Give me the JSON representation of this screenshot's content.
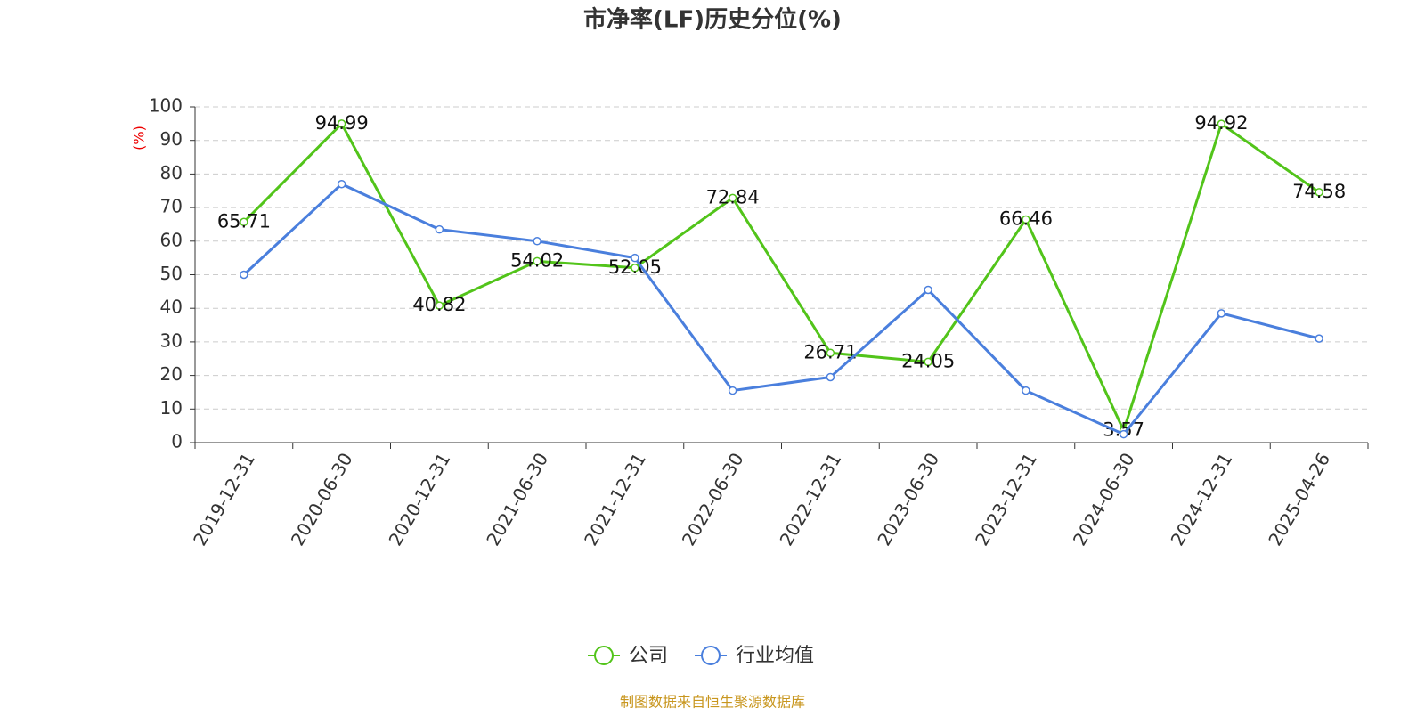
{
  "chart_data": {
    "type": "line",
    "title": "市净率(LF)历史分位(%)",
    "y_label": "(%)",
    "source": "制图数据来自恒生聚源数据库",
    "categories": [
      "2019-12-31",
      "2020-06-30",
      "2020-12-31",
      "2021-06-30",
      "2021-12-31",
      "2022-06-30",
      "2022-12-31",
      "2023-06-30",
      "2023-12-31",
      "2024-06-30",
      "2024-12-31",
      "2025-04-26"
    ],
    "series": [
      {
        "name": "公司",
        "color": "#52c41a",
        "values": [
          65.71,
          94.99,
          40.82,
          54.02,
          52.05,
          72.84,
          26.71,
          24.05,
          66.46,
          3.57,
          94.92,
          74.58
        ],
        "data_labels": true
      },
      {
        "name": "行业均值",
        "color": "#4a7fdd",
        "values": [
          50,
          77,
          63.5,
          60,
          55,
          15.5,
          19.5,
          45.5,
          15.5,
          2.5,
          38.5,
          31
        ],
        "data_labels": false
      }
    ],
    "ylim": [
      0,
      100
    ],
    "yticks": [
      0,
      10,
      20,
      30,
      40,
      50,
      60,
      70,
      80,
      90,
      100
    ],
    "grid": true,
    "legend": "bottom"
  }
}
